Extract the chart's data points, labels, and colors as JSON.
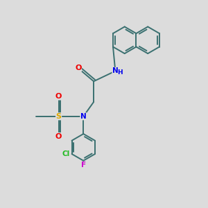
{
  "background_color": "#dcdcdc",
  "bond_color": "#3a7070",
  "atom_colors": {
    "N": "#0000ee",
    "O": "#ee0000",
    "S": "#ddaa00",
    "Cl": "#22bb22",
    "F": "#cc00cc",
    "C": "#222222"
  },
  "figsize": [
    3.0,
    3.0
  ],
  "dpi": 100
}
